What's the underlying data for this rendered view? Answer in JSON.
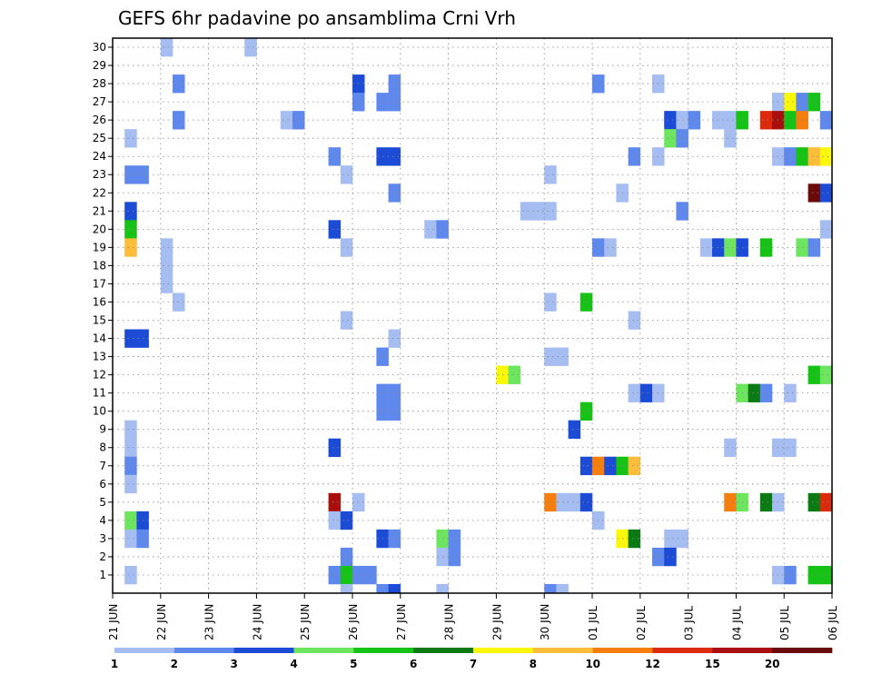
{
  "chart_data": {
    "type": "heatmap",
    "title": "GEFS 6hr padavine po ansamblima Crni Vrh",
    "y": [
      1,
      2,
      3,
      4,
      5,
      6,
      7,
      8,
      9,
      10,
      11,
      12,
      13,
      14,
      15,
      16,
      17,
      18,
      19,
      20,
      21,
      22,
      23,
      24,
      25,
      26,
      27,
      28,
      29,
      30
    ],
    "x_labels": [
      "21 JUN",
      "22 JUN",
      "23 JUN",
      "24 JUN",
      "25 JUN",
      "26 JUN",
      "27 JUN",
      "28 JUN",
      "29 JUN",
      "30 JUN",
      "01 JUL",
      "02 JUL",
      "03 JUL",
      "04 JUL",
      "05 JUL",
      "06 JUL"
    ],
    "x_range": [
      0,
      60
    ],
    "colorbar": {
      "labels": [
        "1",
        "2",
        "3",
        "4",
        "5",
        "6",
        "7",
        "8",
        "10",
        "12",
        "15",
        "20"
      ],
      "colors": [
        "#a6bdf2",
        "#5f88ed",
        "#1c4bd6",
        "#6de55e",
        "#16c216",
        "#0b7a12",
        "#fbf70a",
        "#fbbd3a",
        "#f57e0c",
        "#dc2a0d",
        "#a80f0d",
        "#6a0a0a"
      ]
    },
    "cells": [
      [
        4,
        30,
        0
      ],
      [
        11,
        30,
        0
      ],
      [
        5,
        28,
        1
      ],
      [
        20,
        28,
        2
      ],
      [
        23,
        28,
        1
      ],
      [
        40,
        28,
        1
      ],
      [
        45,
        28,
        0
      ],
      [
        20,
        27,
        1
      ],
      [
        22,
        27,
        1
      ],
      [
        23,
        27,
        1
      ],
      [
        55,
        27,
        0
      ],
      [
        56,
        27,
        6
      ],
      [
        57,
        27,
        1
      ],
      [
        58,
        27,
        4
      ],
      [
        5,
        26,
        1
      ],
      [
        14,
        26,
        0
      ],
      [
        15,
        26,
        1
      ],
      [
        46,
        26,
        2
      ],
      [
        47,
        26,
        0
      ],
      [
        48,
        26,
        1
      ],
      [
        50,
        26,
        0
      ],
      [
        51,
        26,
        0
      ],
      [
        52,
        26,
        4
      ],
      [
        54,
        26,
        9
      ],
      [
        55,
        26,
        10
      ],
      [
        56,
        26,
        4
      ],
      [
        57,
        26,
        8
      ],
      [
        59,
        26,
        1
      ],
      [
        1,
        25,
        0
      ],
      [
        46,
        25,
        3
      ],
      [
        47,
        25,
        1
      ],
      [
        51,
        25,
        0
      ],
      [
        18,
        24,
        1
      ],
      [
        22,
        24,
        2
      ],
      [
        23,
        24,
        2
      ],
      [
        43,
        24,
        1
      ],
      [
        45,
        24,
        0
      ],
      [
        55,
        24,
        0
      ],
      [
        56,
        24,
        1
      ],
      [
        57,
        24,
        4
      ],
      [
        58,
        24,
        7
      ],
      [
        59,
        24,
        6
      ],
      [
        1,
        23,
        1
      ],
      [
        2,
        23,
        1
      ],
      [
        19,
        23,
        0
      ],
      [
        36,
        23,
        0
      ],
      [
        23,
        22,
        1
      ],
      [
        42,
        22,
        0
      ],
      [
        58,
        22,
        11
      ],
      [
        59,
        22,
        2
      ],
      [
        1,
        21,
        2
      ],
      [
        34,
        21,
        0
      ],
      [
        35,
        21,
        0
      ],
      [
        36,
        21,
        0
      ],
      [
        47,
        21,
        1
      ],
      [
        1,
        20,
        4
      ],
      [
        18,
        20,
        2
      ],
      [
        26,
        20,
        0
      ],
      [
        27,
        20,
        1
      ],
      [
        59,
        20,
        0
      ],
      [
        1,
        19,
        7
      ],
      [
        4,
        19,
        0
      ],
      [
        19,
        19,
        0
      ],
      [
        40,
        19,
        1
      ],
      [
        41,
        19,
        0
      ],
      [
        49,
        19,
        0
      ],
      [
        50,
        19,
        2
      ],
      [
        51,
        19,
        3
      ],
      [
        52,
        19,
        2
      ],
      [
        54,
        19,
        4
      ],
      [
        57,
        19,
        3
      ],
      [
        58,
        19,
        1
      ],
      [
        4,
        18,
        0
      ],
      [
        4,
        17,
        0
      ],
      [
        5,
        16,
        0
      ],
      [
        36,
        16,
        0
      ],
      [
        39,
        16,
        4
      ],
      [
        43,
        15,
        0
      ],
      [
        19,
        15,
        0
      ],
      [
        1,
        14,
        2
      ],
      [
        2,
        14,
        2
      ],
      [
        23,
        14,
        0
      ],
      [
        22,
        13,
        1
      ],
      [
        36,
        13,
        0
      ],
      [
        37,
        13,
        0
      ],
      [
        32,
        12,
        6
      ],
      [
        33,
        12,
        3
      ],
      [
        58,
        12,
        4
      ],
      [
        59,
        12,
        3
      ],
      [
        22,
        11,
        1
      ],
      [
        23,
        11,
        1
      ],
      [
        43,
        11,
        0
      ],
      [
        44,
        11,
        2
      ],
      [
        45,
        11,
        0
      ],
      [
        52,
        11,
        3
      ],
      [
        53,
        11,
        5
      ],
      [
        54,
        11,
        1
      ],
      [
        56,
        11,
        0
      ],
      [
        22,
        10,
        1
      ],
      [
        23,
        10,
        1
      ],
      [
        39,
        10,
        4
      ],
      [
        38,
        9,
        2
      ],
      [
        1,
        9,
        0
      ],
      [
        1,
        8,
        0
      ],
      [
        18,
        8,
        2
      ],
      [
        51,
        8,
        0
      ],
      [
        55,
        8,
        0
      ],
      [
        56,
        8,
        0
      ],
      [
        1,
        7,
        1
      ],
      [
        39,
        7,
        2
      ],
      [
        40,
        7,
        8
      ],
      [
        41,
        7,
        2
      ],
      [
        42,
        7,
        4
      ],
      [
        43,
        7,
        7
      ],
      [
        1,
        6,
        0
      ],
      [
        18,
        5,
        10
      ],
      [
        20,
        5,
        0
      ],
      [
        36,
        5,
        8
      ],
      [
        37,
        5,
        0
      ],
      [
        38,
        5,
        0
      ],
      [
        39,
        5,
        2
      ],
      [
        51,
        5,
        8
      ],
      [
        52,
        5,
        3
      ],
      [
        54,
        5,
        5
      ],
      [
        55,
        5,
        0
      ],
      [
        58,
        5,
        5
      ],
      [
        59,
        5,
        9
      ],
      [
        1,
        4,
        3
      ],
      [
        2,
        4,
        2
      ],
      [
        18,
        4,
        0
      ],
      [
        19,
        4,
        2
      ],
      [
        40,
        4,
        0
      ],
      [
        1,
        3,
        0
      ],
      [
        2,
        3,
        1
      ],
      [
        22,
        3,
        2
      ],
      [
        23,
        3,
        1
      ],
      [
        27,
        3,
        3
      ],
      [
        28,
        3,
        1
      ],
      [
        42,
        3,
        6
      ],
      [
        43,
        3,
        5
      ],
      [
        46,
        3,
        0
      ],
      [
        47,
        3,
        0
      ],
      [
        19,
        2,
        1
      ],
      [
        27,
        2,
        0
      ],
      [
        28,
        2,
        1
      ],
      [
        45,
        2,
        1
      ],
      [
        46,
        2,
        2
      ],
      [
        1,
        1,
        0
      ],
      [
        18,
        1,
        1
      ],
      [
        19,
        1,
        4
      ],
      [
        20,
        1,
        1
      ],
      [
        21,
        1,
        1
      ],
      [
        55,
        1,
        0
      ],
      [
        56,
        1,
        1
      ],
      [
        58,
        1,
        4
      ],
      [
        59,
        1,
        4
      ],
      [
        19,
        0,
        0
      ],
      [
        22,
        0,
        1
      ],
      [
        23,
        0,
        2
      ],
      [
        27,
        0,
        0
      ],
      [
        36,
        0,
        1
      ],
      [
        37,
        0,
        0
      ]
    ]
  }
}
